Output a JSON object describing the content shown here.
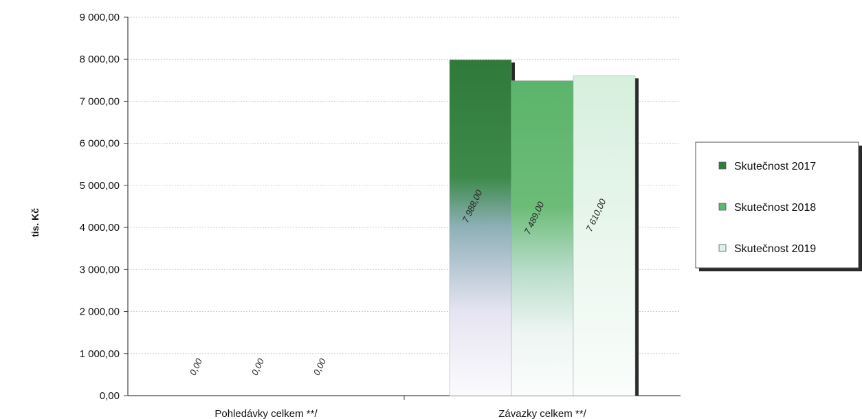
{
  "chart_data": {
    "type": "bar",
    "categories": [
      "Pohledávky celkem **/",
      "Závazky celkem **/"
    ],
    "series": [
      {
        "name": "Skutečnost 2017",
        "values": [
          0,
          7988
        ],
        "labels": [
          "0,00",
          "7 988,00"
        ],
        "color": "#2e7d3c"
      },
      {
        "name": "Skutečnost 2018",
        "values": [
          0,
          7489
        ],
        "labels": [
          "0,00",
          "7 489,00"
        ],
        "color": "#5fb86c"
      },
      {
        "name": "Skutečnost 2019",
        "values": [
          0,
          7610
        ],
        "labels": [
          "0,00",
          "7 610,00"
        ],
        "color": "#dff3e4"
      }
    ],
    "ylabel": "tis. Kč",
    "ylim": [
      0,
      9000
    ],
    "yticks": [
      0,
      1000,
      2000,
      3000,
      4000,
      5000,
      6000,
      7000,
      8000,
      9000
    ],
    "ytick_labels": [
      "0,00",
      "1 000,00",
      "2 000,00",
      "3 000,00",
      "4 000,00",
      "5 000,00",
      "6 000,00",
      "7 000,00",
      "8 000,00",
      "9 000,00"
    ],
    "grid": true,
    "legend_position": "right"
  }
}
